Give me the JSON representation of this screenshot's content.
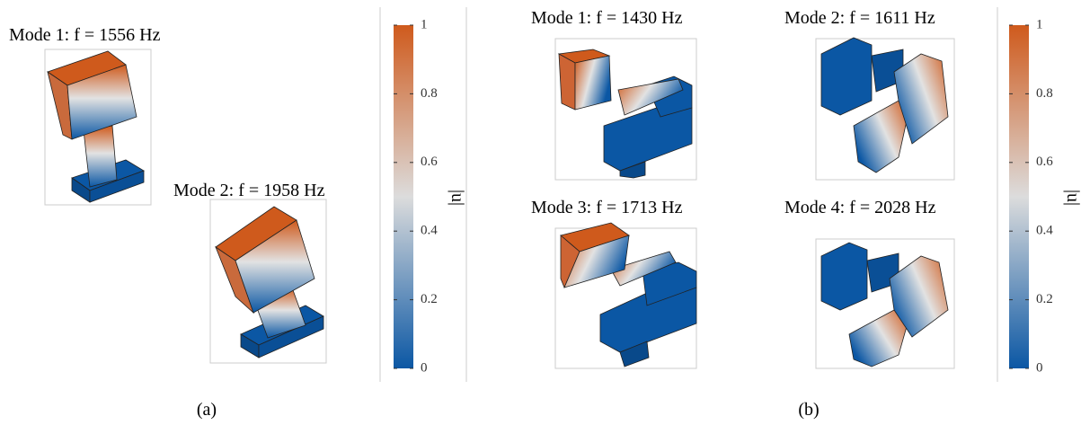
{
  "panels": [
    {
      "label": "(a)",
      "modes": [
        {
          "title": "Mode 1: f = 1556 Hz"
        },
        {
          "title": "Mode 2: f = 1958 Hz"
        }
      ],
      "colorbar": {
        "label": "|u|",
        "range": [
          0,
          1
        ],
        "ticks": [
          0,
          0.2,
          0.4,
          0.6,
          0.8,
          1
        ]
      }
    },
    {
      "label": "(b)",
      "modes": [
        {
          "title": "Mode 1: f = 1430 Hz"
        },
        {
          "title": "Mode 2: f = 1611 Hz"
        },
        {
          "title": "Mode 3: f = 1713 Hz"
        },
        {
          "title": "Mode 4: f = 2028 Hz"
        }
      ],
      "colorbar": {
        "label": "|u|",
        "range": [
          0,
          1
        ],
        "ticks": [
          0,
          0.2,
          0.4,
          0.6,
          0.8,
          1
        ]
      }
    }
  ]
}
